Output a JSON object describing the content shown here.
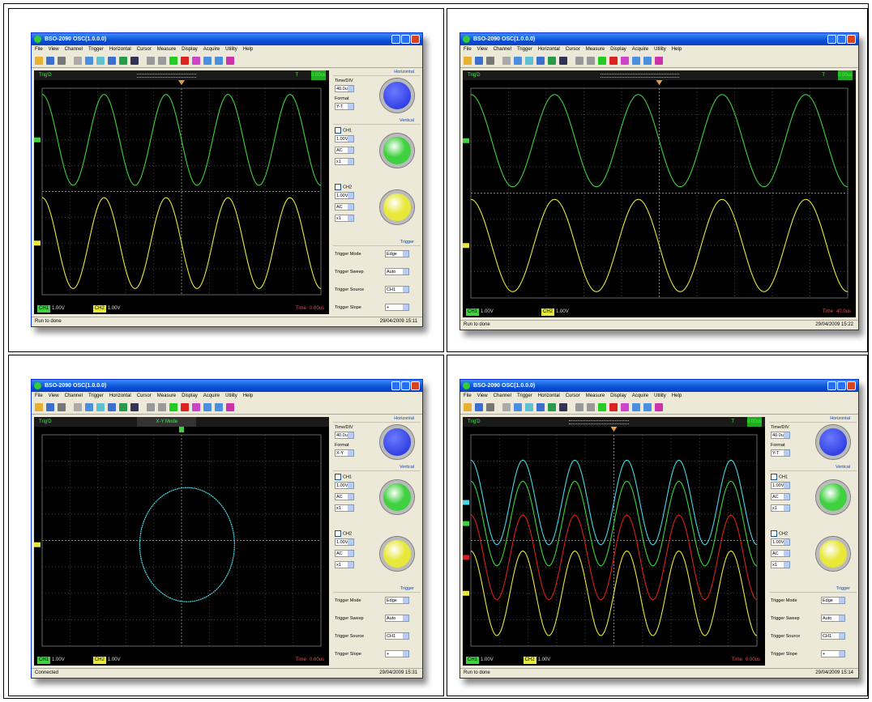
{
  "windows": [
    {
      "title": "BSO-2090 OSC(1.0.0.0)",
      "menu": [
        "File",
        "View",
        "Channel",
        "Trigger",
        "Horizontal",
        "Cursor",
        "Measure",
        "Display",
        "Acquire",
        "Utility",
        "Help"
      ],
      "trig_status": "Trig'D",
      "trigger_mark": "T",
      "trigger_time": "0.00us",
      "ch1_label": "CH1",
      "ch1_scale": "1.00V",
      "ch2_label": "CH2",
      "ch2_scale": "1.00V",
      "time_label": "Time",
      "time_value": "0.00us",
      "status": "Run to done",
      "datetime": "29/04/2009 15:11",
      "panel": {
        "horizontal_title": "Horizontal",
        "time_div_label": "Time/DIV",
        "time_div": "40.0us",
        "format_label": "Format",
        "format": "Y-T",
        "vertical_title": "Vertical",
        "ch1": "CH1",
        "ch1_volt": "1.00V",
        "ch1_coupling": "AC",
        "ch1_probe": "x1",
        "ch2": "CH2",
        "ch2_volt": "1.00V",
        "ch2_coupling": "AC",
        "ch2_probe": "x1",
        "trigger_title": "Trigger",
        "trigger_rows": [
          {
            "label": "Trigger Mode",
            "value": "Edge"
          },
          {
            "label": "Trigger Sweep",
            "value": "Auto"
          },
          {
            "label": "Trigger Source",
            "value": "CH1"
          },
          {
            "label": "Trigger Slope",
            "value": "+"
          }
        ]
      }
    },
    {
      "title": "BSO-2090 OSC(1.0.0.0)",
      "menu": [
        "File",
        "View",
        "Channel",
        "Trigger",
        "Horizontal",
        "Cursor",
        "Measure",
        "Display",
        "Acquire",
        "Utility",
        "Help"
      ],
      "trig_status": "Trig'D",
      "trigger_mark": "T",
      "trigger_time": "0.00us",
      "ch1_label": "CH1",
      "ch1_scale": "1.00V",
      "ch2_label": "CH2",
      "ch2_scale": "1.00V",
      "time_label": "Time",
      "time_value": "40.0us",
      "status": "Run to done",
      "datetime": "29/04/2009 15:22"
    },
    {
      "title": "BSO-2090 OSC(1.0.0.0)",
      "menu": [
        "File",
        "View",
        "Channel",
        "Trigger",
        "Horizontal",
        "Cursor",
        "Measure",
        "Display",
        "Acquire",
        "Utility",
        "Help"
      ],
      "trig_status": "Trig'D",
      "mode_text": "X-Y Mode",
      "ch1_label": "CH1",
      "ch1_scale": "1.00V",
      "ch2_label": "CH2",
      "ch2_scale": "1.00V",
      "time_label": "Time",
      "time_value": "0.00us",
      "status": "Connected",
      "datetime": "29/04/2009 15:31",
      "panel": {
        "horizontal_title": "Horizontal",
        "time_div_label": "Time/DIV",
        "time_div": "40.0us",
        "format_label": "Format",
        "format": "X-Y",
        "vertical_title": "Vertical",
        "ch1": "CH1",
        "ch1_volt": "1.00V",
        "ch1_coupling": "AC",
        "ch1_probe": "x1",
        "ch2": "CH2",
        "ch2_volt": "1.00V",
        "ch2_coupling": "AC",
        "ch2_probe": "x1",
        "trigger_title": "Trigger",
        "trigger_rows": [
          {
            "label": "Trigger Mode",
            "value": "Edge"
          },
          {
            "label": "Trigger Sweep",
            "value": "Auto"
          },
          {
            "label": "Trigger Source",
            "value": "CH1"
          },
          {
            "label": "Trigger Slope",
            "value": "+"
          }
        ]
      }
    },
    {
      "title": "BSO-2090 OSC(1.0.0.0)",
      "menu": [
        "File",
        "View",
        "Channel",
        "Trigger",
        "Horizontal",
        "Cursor",
        "Measure",
        "Display",
        "Acquire",
        "Utility",
        "Help"
      ],
      "trig_status": "Trig'D",
      "trigger_mark": "T",
      "trigger_time": "0.00us",
      "ch1_label": "CH1",
      "ch1_scale": "1.00V",
      "ch2_label": "CH2",
      "ch2_scale": "1.00V",
      "time_label": "Time",
      "time_value": "0.00us",
      "status": "Run to done",
      "datetime": "29/04/2009 15:14",
      "panel": {
        "horizontal_title": "Horizontal",
        "time_div_label": "Time/DIV",
        "time_div": "40.0us",
        "format_label": "Format",
        "format": "Y-T",
        "vertical_title": "Vertical",
        "ch1": "CH1",
        "ch1_volt": "1.00V",
        "ch1_coupling": "AC",
        "ch1_probe": "x1",
        "ch2": "CH2",
        "ch2_volt": "1.00V",
        "ch2_coupling": "AC",
        "ch2_probe": "x1",
        "trigger_title": "Trigger",
        "trigger_rows": [
          {
            "label": "Trigger Mode",
            "value": "Edge"
          },
          {
            "label": "Trigger Sweep",
            "value": "Auto"
          },
          {
            "label": "Trigger Source",
            "value": "CH1"
          },
          {
            "label": "Trigger Slope",
            "value": "+"
          }
        ]
      }
    }
  ]
}
